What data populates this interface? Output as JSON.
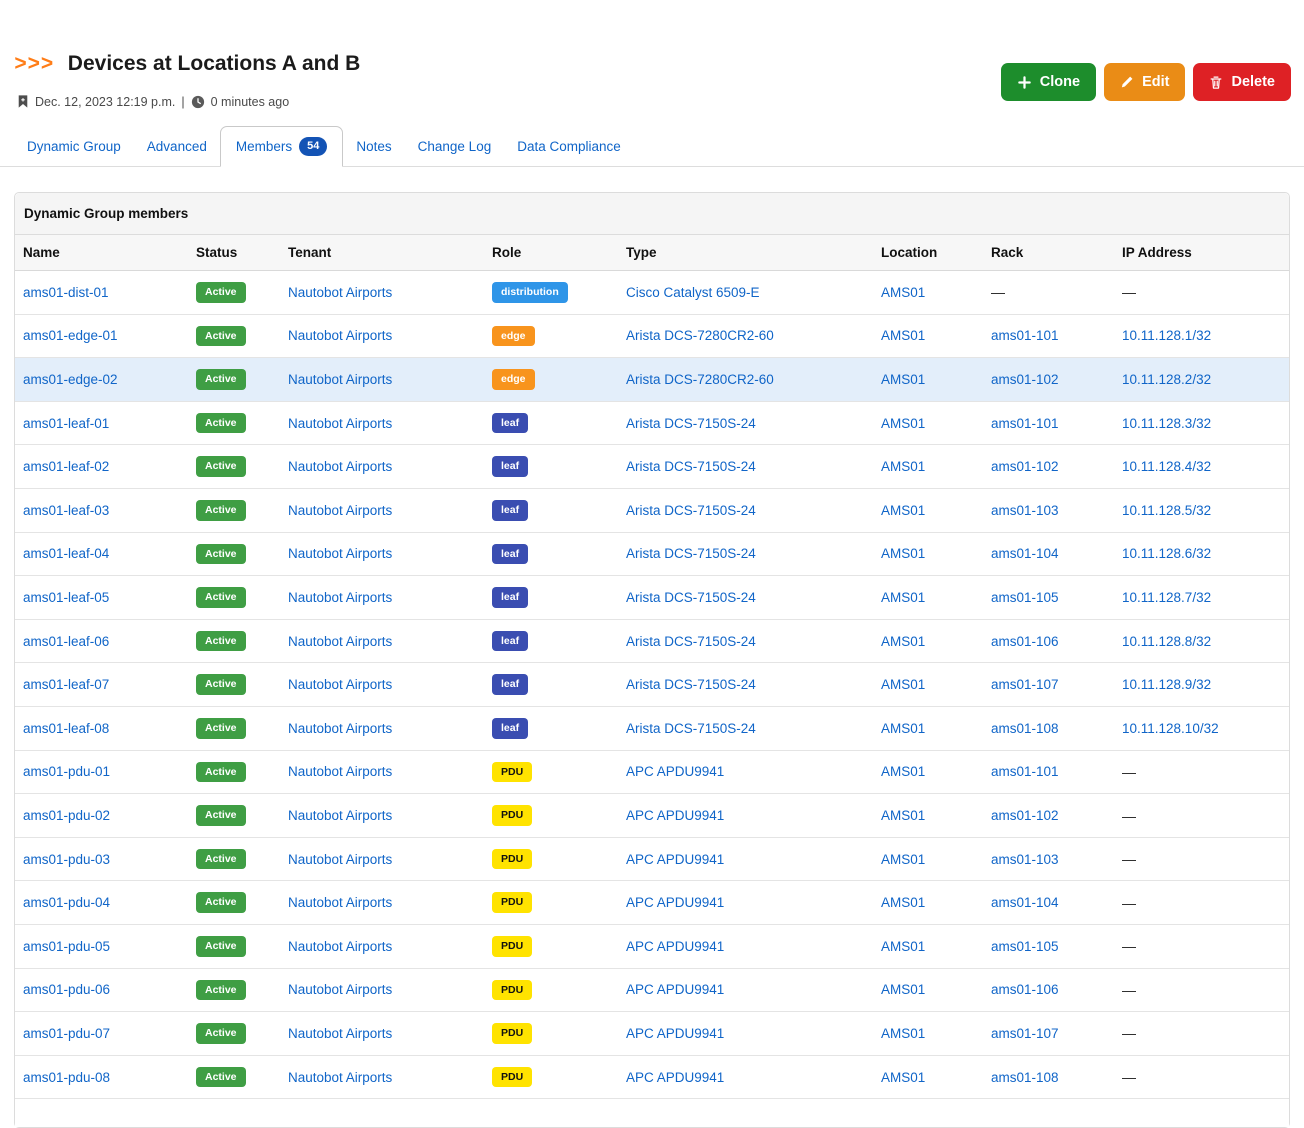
{
  "header": {
    "breadcrumb": ">>>",
    "title": "Devices at Locations A and B",
    "date": "Dec. 12, 2023 12:19 p.m.",
    "separator": "|",
    "age": "0 minutes ago"
  },
  "actions": {
    "clone": "Clone",
    "edit": "Edit",
    "delete": "Delete"
  },
  "tabs": [
    {
      "label": "Dynamic Group",
      "active": false
    },
    {
      "label": "Advanced",
      "active": false
    },
    {
      "label": "Members",
      "active": true,
      "badge": "54"
    },
    {
      "label": "Notes",
      "active": false
    },
    {
      "label": "Change Log",
      "active": false
    },
    {
      "label": "Data Compliance",
      "active": false
    }
  ],
  "panel": {
    "title": "Dynamic Group members"
  },
  "table": {
    "columns": [
      "Name",
      "Status",
      "Tenant",
      "Role",
      "Type",
      "Location",
      "Rack",
      "IP Address"
    ],
    "rows": [
      {
        "name": "ams01-dist-01",
        "status": "Active",
        "tenant": "Nautobot Airports",
        "role": "distribution",
        "type": "Cisco Catalyst 6509-E",
        "location": "AMS01",
        "rack": "—",
        "ip": "—",
        "highlight": false
      },
      {
        "name": "ams01-edge-01",
        "status": "Active",
        "tenant": "Nautobot Airports",
        "role": "edge",
        "type": "Arista DCS-7280CR2-60",
        "location": "AMS01",
        "rack": "ams01-101",
        "ip": "10.11.128.1/32",
        "highlight": false
      },
      {
        "name": "ams01-edge-02",
        "status": "Active",
        "tenant": "Nautobot Airports",
        "role": "edge",
        "type": "Arista DCS-7280CR2-60",
        "location": "AMS01",
        "rack": "ams01-102",
        "ip": "10.11.128.2/32",
        "highlight": true
      },
      {
        "name": "ams01-leaf-01",
        "status": "Active",
        "tenant": "Nautobot Airports",
        "role": "leaf",
        "type": "Arista DCS-7150S-24",
        "location": "AMS01",
        "rack": "ams01-101",
        "ip": "10.11.128.3/32",
        "highlight": false
      },
      {
        "name": "ams01-leaf-02",
        "status": "Active",
        "tenant": "Nautobot Airports",
        "role": "leaf",
        "type": "Arista DCS-7150S-24",
        "location": "AMS01",
        "rack": "ams01-102",
        "ip": "10.11.128.4/32",
        "highlight": false
      },
      {
        "name": "ams01-leaf-03",
        "status": "Active",
        "tenant": "Nautobot Airports",
        "role": "leaf",
        "type": "Arista DCS-7150S-24",
        "location": "AMS01",
        "rack": "ams01-103",
        "ip": "10.11.128.5/32",
        "highlight": false
      },
      {
        "name": "ams01-leaf-04",
        "status": "Active",
        "tenant": "Nautobot Airports",
        "role": "leaf",
        "type": "Arista DCS-7150S-24",
        "location": "AMS01",
        "rack": "ams01-104",
        "ip": "10.11.128.6/32",
        "highlight": false
      },
      {
        "name": "ams01-leaf-05",
        "status": "Active",
        "tenant": "Nautobot Airports",
        "role": "leaf",
        "type": "Arista DCS-7150S-24",
        "location": "AMS01",
        "rack": "ams01-105",
        "ip": "10.11.128.7/32",
        "highlight": false
      },
      {
        "name": "ams01-leaf-06",
        "status": "Active",
        "tenant": "Nautobot Airports",
        "role": "leaf",
        "type": "Arista DCS-7150S-24",
        "location": "AMS01",
        "rack": "ams01-106",
        "ip": "10.11.128.8/32",
        "highlight": false
      },
      {
        "name": "ams01-leaf-07",
        "status": "Active",
        "tenant": "Nautobot Airports",
        "role": "leaf",
        "type": "Arista DCS-7150S-24",
        "location": "AMS01",
        "rack": "ams01-107",
        "ip": "10.11.128.9/32",
        "highlight": false
      },
      {
        "name": "ams01-leaf-08",
        "status": "Active",
        "tenant": "Nautobot Airports",
        "role": "leaf",
        "type": "Arista DCS-7150S-24",
        "location": "AMS01",
        "rack": "ams01-108",
        "ip": "10.11.128.10/32",
        "highlight": false
      },
      {
        "name": "ams01-pdu-01",
        "status": "Active",
        "tenant": "Nautobot Airports",
        "role": "PDU",
        "type": "APC APDU9941",
        "location": "AMS01",
        "rack": "ams01-101",
        "ip": "—",
        "highlight": false
      },
      {
        "name": "ams01-pdu-02",
        "status": "Active",
        "tenant": "Nautobot Airports",
        "role": "PDU",
        "type": "APC APDU9941",
        "location": "AMS01",
        "rack": "ams01-102",
        "ip": "—",
        "highlight": false
      },
      {
        "name": "ams01-pdu-03",
        "status": "Active",
        "tenant": "Nautobot Airports",
        "role": "PDU",
        "type": "APC APDU9941",
        "location": "AMS01",
        "rack": "ams01-103",
        "ip": "—",
        "highlight": false
      },
      {
        "name": "ams01-pdu-04",
        "status": "Active",
        "tenant": "Nautobot Airports",
        "role": "PDU",
        "type": "APC APDU9941",
        "location": "AMS01",
        "rack": "ams01-104",
        "ip": "—",
        "highlight": false
      },
      {
        "name": "ams01-pdu-05",
        "status": "Active",
        "tenant": "Nautobot Airports",
        "role": "PDU",
        "type": "APC APDU9941",
        "location": "AMS01",
        "rack": "ams01-105",
        "ip": "—",
        "highlight": false
      },
      {
        "name": "ams01-pdu-06",
        "status": "Active",
        "tenant": "Nautobot Airports",
        "role": "PDU",
        "type": "APC APDU9941",
        "location": "AMS01",
        "rack": "ams01-106",
        "ip": "—",
        "highlight": false
      },
      {
        "name": "ams01-pdu-07",
        "status": "Active",
        "tenant": "Nautobot Airports",
        "role": "PDU",
        "type": "APC APDU9941",
        "location": "AMS01",
        "rack": "ams01-107",
        "ip": "—",
        "highlight": false
      },
      {
        "name": "ams01-pdu-08",
        "status": "Active",
        "tenant": "Nautobot Airports",
        "role": "PDU",
        "type": "APC APDU9941",
        "location": "AMS01",
        "rack": "ams01-108",
        "ip": "—",
        "highlight": false
      }
    ]
  },
  "role_colors": {
    "distribution": {
      "bg": "#2f95e8",
      "fg": "#ffffff"
    },
    "edge": {
      "bg": "#f8941d",
      "fg": "#ffffff"
    },
    "leaf": {
      "bg": "#3a4db1",
      "fg": "#ffffff"
    },
    "PDU": {
      "bg": "#ffe300",
      "fg": "#111111"
    }
  },
  "colors": {
    "link": "#1065c8",
    "accent_orange": "#ff7d17",
    "status_active_bg": "#3f9e44",
    "highlight_row_bg": "#e3eefa",
    "tab_count_bg": "#1353b5",
    "clone_button_bg": "#1d8d2c",
    "edit_button_bg": "#ea8c16",
    "delete_button_bg": "#de2125"
  }
}
